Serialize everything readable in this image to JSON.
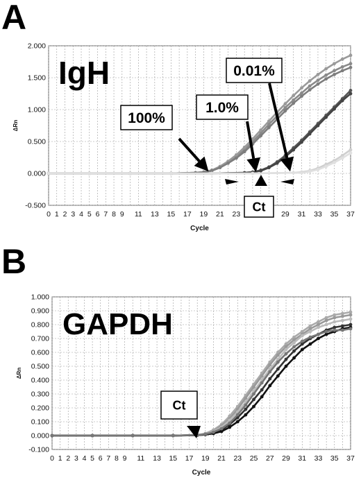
{
  "panels": [
    {
      "letter": "A"
    },
    {
      "letter": "B"
    }
  ],
  "chart_data": [
    {
      "type": "line",
      "panel": "A",
      "title": "IgH",
      "xlabel": "Cycle",
      "ylabel": "ΔRn",
      "xlim": [
        0,
        37
      ],
      "ylim": [
        -0.5,
        2.0
      ],
      "y_ticks": [
        "-0.500",
        "0.000",
        "0.500",
        "1.000",
        "1.500",
        "2.000"
      ],
      "x_ticks": [
        "0",
        "1",
        "2",
        "3",
        "4",
        "5",
        "6",
        "7",
        "8",
        "9",
        "11",
        "13",
        "15",
        "17",
        "19",
        "21",
        "23",
        "25",
        "27",
        "29",
        "31",
        "33",
        "35",
        "37"
      ],
      "grid": true,
      "annotations": [
        "100%",
        "1.0%",
        "0.01%",
        "Ct"
      ],
      "series": [
        {
          "name": "100%",
          "color": "#8a8a8a",
          "x": [
            0,
            5,
            10,
            15,
            18,
            19,
            20,
            21,
            22,
            23,
            24,
            25,
            26,
            27,
            28,
            29,
            30,
            31,
            32,
            33,
            34,
            35,
            36,
            37
          ],
          "y": [
            0,
            0,
            0,
            0,
            0.01,
            0.02,
            0.05,
            0.1,
            0.17,
            0.26,
            0.37,
            0.5,
            0.63,
            0.77,
            0.9,
            1.03,
            1.15,
            1.26,
            1.37,
            1.46,
            1.54,
            1.61,
            1.67,
            1.72
          ]
        },
        {
          "name": "100%",
          "color": "#9a9a9a",
          "x": [
            0,
            5,
            10,
            15,
            18,
            19,
            20,
            21,
            22,
            23,
            24,
            25,
            26,
            27,
            28,
            29,
            30,
            31,
            32,
            33,
            34,
            35,
            36,
            37
          ],
          "y": [
            0,
            0,
            0,
            0,
            0.01,
            0.02,
            0.05,
            0.11,
            0.19,
            0.29,
            0.41,
            0.54,
            0.68,
            0.82,
            0.96,
            1.09,
            1.22,
            1.34,
            1.45,
            1.55,
            1.64,
            1.72,
            1.79,
            1.85
          ]
        },
        {
          "name": "100%",
          "color": "#7d7d7d",
          "x": [
            0,
            5,
            10,
            15,
            18,
            19,
            20,
            21,
            22,
            23,
            24,
            25,
            26,
            27,
            28,
            29,
            30,
            31,
            32,
            33,
            34,
            35,
            36,
            37
          ],
          "y": [
            0,
            0,
            0,
            0,
            0.01,
            0.02,
            0.04,
            0.09,
            0.16,
            0.24,
            0.34,
            0.46,
            0.59,
            0.72,
            0.85,
            0.98,
            1.1,
            1.21,
            1.31,
            1.4,
            1.48,
            1.55,
            1.61,
            1.66
          ]
        },
        {
          "name": "1.0%",
          "color": "#555555",
          "x": [
            0,
            5,
            10,
            15,
            20,
            24,
            25,
            26,
            27,
            28,
            29,
            30,
            31,
            32,
            33,
            34,
            35,
            36,
            37
          ],
          "y": [
            0,
            0,
            0,
            0,
            0,
            0.01,
            0.02,
            0.05,
            0.1,
            0.18,
            0.28,
            0.4,
            0.52,
            0.65,
            0.78,
            0.91,
            1.04,
            1.17,
            1.3
          ]
        },
        {
          "name": "1.0%",
          "color": "#444444",
          "x": [
            0,
            5,
            10,
            15,
            20,
            24,
            25,
            26,
            27,
            28,
            29,
            30,
            31,
            32,
            33,
            34,
            35,
            36,
            37
          ],
          "y": [
            0,
            0,
            0,
            0,
            0,
            0.01,
            0.02,
            0.04,
            0.09,
            0.16,
            0.26,
            0.37,
            0.49,
            0.62,
            0.75,
            0.88,
            1.01,
            1.14,
            1.25
          ]
        },
        {
          "name": "0.01%",
          "color": "#cfcfcf",
          "x": [
            0,
            5,
            10,
            15,
            20,
            25,
            30,
            31,
            32,
            33,
            34,
            35,
            36,
            37
          ],
          "y": [
            0,
            0,
            0,
            0,
            0,
            0,
            0.01,
            0.02,
            0.04,
            0.08,
            0.14,
            0.2,
            0.28,
            0.37
          ]
        },
        {
          "name": "0.01%",
          "color": "#e0e0e0",
          "x": [
            0,
            5,
            10,
            15,
            20,
            25,
            30,
            31,
            32,
            33,
            34,
            35,
            36,
            37
          ],
          "y": [
            0,
            0,
            0,
            0,
            0,
            0,
            0.01,
            0.01,
            0.03,
            0.06,
            0.11,
            0.17,
            0.24,
            0.32
          ]
        }
      ]
    },
    {
      "type": "line",
      "panel": "B",
      "title": "GAPDH",
      "xlabel": "Cycle",
      "ylabel": "ΔRn",
      "xlim": [
        0,
        37
      ],
      "ylim": [
        -0.1,
        1.0
      ],
      "y_ticks": [
        "-0.100",
        "0.000",
        "0.100",
        "0.200",
        "0.300",
        "0.400",
        "0.500",
        "0.600",
        "0.700",
        "0.800",
        "0.900",
        "1.000"
      ],
      "x_ticks": [
        "0",
        "1",
        "2",
        "3",
        "4",
        "5",
        "6",
        "7",
        "8",
        "9",
        "11",
        "13",
        "15",
        "17",
        "19",
        "21",
        "23",
        "25",
        "27",
        "29",
        "31",
        "33",
        "35",
        "37"
      ],
      "grid": true,
      "annotations": [
        "Ct"
      ],
      "series": [
        {
          "color": "#aaaaaa",
          "x": [
            0,
            5,
            10,
            15,
            18,
            19,
            20,
            21,
            22,
            23,
            24,
            25,
            26,
            27,
            28,
            29,
            30,
            31,
            32,
            33,
            34,
            35,
            36,
            37
          ],
          "y": [
            0,
            0,
            0,
            0,
            0.005,
            0.015,
            0.04,
            0.08,
            0.14,
            0.21,
            0.29,
            0.37,
            0.45,
            0.53,
            0.6,
            0.66,
            0.71,
            0.75,
            0.79,
            0.82,
            0.85,
            0.87,
            0.88,
            0.89
          ]
        },
        {
          "color": "#999999",
          "x": [
            0,
            5,
            10,
            15,
            18,
            19,
            20,
            21,
            22,
            23,
            24,
            25,
            26,
            27,
            28,
            29,
            30,
            31,
            32,
            33,
            34,
            35,
            36,
            37
          ],
          "y": [
            0,
            0,
            0,
            0,
            0.005,
            0.012,
            0.03,
            0.07,
            0.12,
            0.19,
            0.27,
            0.35,
            0.43,
            0.51,
            0.58,
            0.64,
            0.69,
            0.73,
            0.77,
            0.8,
            0.83,
            0.85,
            0.86,
            0.87
          ]
        },
        {
          "color": "#bbbbbb",
          "x": [
            0,
            5,
            10,
            15,
            18,
            19,
            20,
            21,
            22,
            23,
            24,
            25,
            26,
            27,
            28,
            29,
            30,
            31,
            32,
            33,
            34,
            35,
            36,
            37
          ],
          "y": [
            0,
            0,
            0,
            0,
            0.004,
            0.01,
            0.03,
            0.06,
            0.11,
            0.17,
            0.24,
            0.32,
            0.4,
            0.48,
            0.55,
            0.62,
            0.67,
            0.72,
            0.75,
            0.78,
            0.8,
            0.82,
            0.83,
            0.84
          ]
        },
        {
          "color": "#333333",
          "x": [
            0,
            5,
            10,
            15,
            18,
            19,
            20,
            21,
            22,
            23,
            24,
            25,
            26,
            27,
            28,
            29,
            30,
            31,
            32,
            33,
            34,
            35,
            36,
            37
          ],
          "y": [
            0,
            0,
            0,
            0,
            0.003,
            0.008,
            0.02,
            0.04,
            0.08,
            0.13,
            0.19,
            0.26,
            0.33,
            0.41,
            0.48,
            0.55,
            0.61,
            0.66,
            0.7,
            0.73,
            0.76,
            0.78,
            0.79,
            0.8
          ]
        },
        {
          "color": "#111111",
          "x": [
            0,
            5,
            10,
            15,
            18,
            19,
            20,
            21,
            22,
            23,
            24,
            25,
            26,
            27,
            28,
            29,
            30,
            31,
            32,
            33,
            34,
            35,
            36,
            37
          ],
          "y": [
            0,
            0,
            0,
            0,
            0.003,
            0.007,
            0.015,
            0.03,
            0.06,
            0.1,
            0.15,
            0.21,
            0.28,
            0.36,
            0.43,
            0.5,
            0.56,
            0.62,
            0.66,
            0.7,
            0.73,
            0.75,
            0.77,
            0.78
          ]
        },
        {
          "color": "#777777",
          "x": [
            0,
            5,
            10,
            15,
            18,
            19,
            20,
            21,
            22,
            23,
            24,
            25,
            26,
            27,
            28,
            29,
            30,
            31,
            32,
            33,
            34,
            35,
            36,
            37
          ],
          "y": [
            0,
            0,
            0,
            0,
            0.004,
            0.01,
            0.025,
            0.05,
            0.09,
            0.15,
            0.22,
            0.3,
            0.38,
            0.46,
            0.53,
            0.59,
            0.64,
            0.68,
            0.71,
            0.73,
            0.75,
            0.76,
            0.76,
            0.77
          ]
        }
      ]
    }
  ]
}
